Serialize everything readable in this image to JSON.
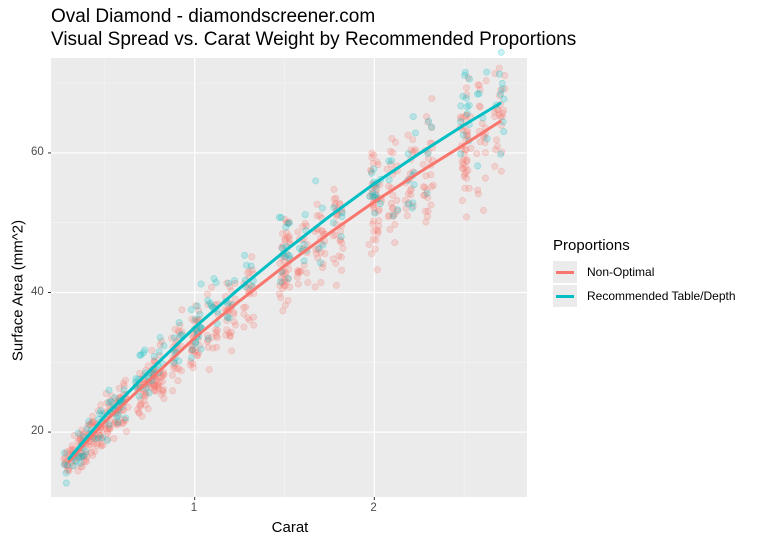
{
  "chart_data": {
    "type": "scatter",
    "title": "Oval Diamond - diamondscreener.com",
    "subtitle": "Visual Spread vs. Carat Weight by Recommended Proportions",
    "xlabel": "Carat",
    "ylabel": "Surface Area (mm^2)",
    "xlim": [
      0.2,
      2.85
    ],
    "ylim": [
      10.7,
      73.6
    ],
    "x_ticks": [
      1,
      2
    ],
    "y_ticks": [
      20,
      40,
      60
    ],
    "grid": true,
    "legend": {
      "title": "Proportions",
      "position": "right"
    },
    "series": [
      {
        "name": "Non-Optimal",
        "color": "#F8766D",
        "trend": {
          "x": [
            0.3,
            0.5,
            0.75,
            1.0,
            1.25,
            1.5,
            1.75,
            2.0,
            2.25,
            2.5,
            2.7
          ],
          "y": [
            15.8,
            21.5,
            27.5,
            33.5,
            38.8,
            43.8,
            48.5,
            53.0,
            57.2,
            61.2,
            64.5
          ]
        },
        "points_approx": [
          {
            "x": 0.3,
            "y_range": [
              14,
              18
            ]
          },
          {
            "x": 0.5,
            "y_range": [
              19,
              24
            ]
          },
          {
            "x": 0.7,
            "y_range": [
              25,
              31
            ]
          },
          {
            "x": 0.9,
            "y_range": [
              29,
              36
            ]
          },
          {
            "x": 1.0,
            "y_range": [
              28,
              39
            ]
          },
          {
            "x": 1.2,
            "y_range": [
              34,
              43
            ]
          },
          {
            "x": 1.5,
            "y_range": [
              38,
              48
            ]
          },
          {
            "x": 1.7,
            "y_range": [
              42,
              52
            ]
          },
          {
            "x": 2.0,
            "y_range": [
              47,
              58
            ]
          },
          {
            "x": 2.2,
            "y_range": [
              50,
              61
            ]
          },
          {
            "x": 2.5,
            "y_range": [
              53,
              68
            ]
          },
          {
            "x": 2.7,
            "y_range": [
              60,
              70
            ]
          }
        ]
      },
      {
        "name": "Recommended Table/Depth",
        "color": "#00BFC4",
        "trend": {
          "x": [
            0.3,
            0.5,
            0.75,
            1.0,
            1.25,
            1.5,
            1.75,
            2.0,
            2.25,
            2.5,
            2.7
          ],
          "y": [
            16.2,
            22.3,
            28.8,
            35.0,
            40.6,
            45.9,
            50.9,
            55.6,
            59.9,
            64.0,
            67.1
          ]
        },
        "points_approx": [
          {
            "x": 0.3,
            "y_range": [
              15,
              18
            ]
          },
          {
            "x": 0.7,
            "y_range": [
              27,
              31
            ]
          },
          {
            "x": 1.0,
            "y_range": [
              33,
              38
            ]
          },
          {
            "x": 1.5,
            "y_range": [
              44,
              49
            ]
          },
          {
            "x": 2.0,
            "y_range": [
              53,
              58
            ]
          },
          {
            "x": 2.5,
            "y_range": [
              62,
              68
            ]
          }
        ]
      }
    ]
  }
}
